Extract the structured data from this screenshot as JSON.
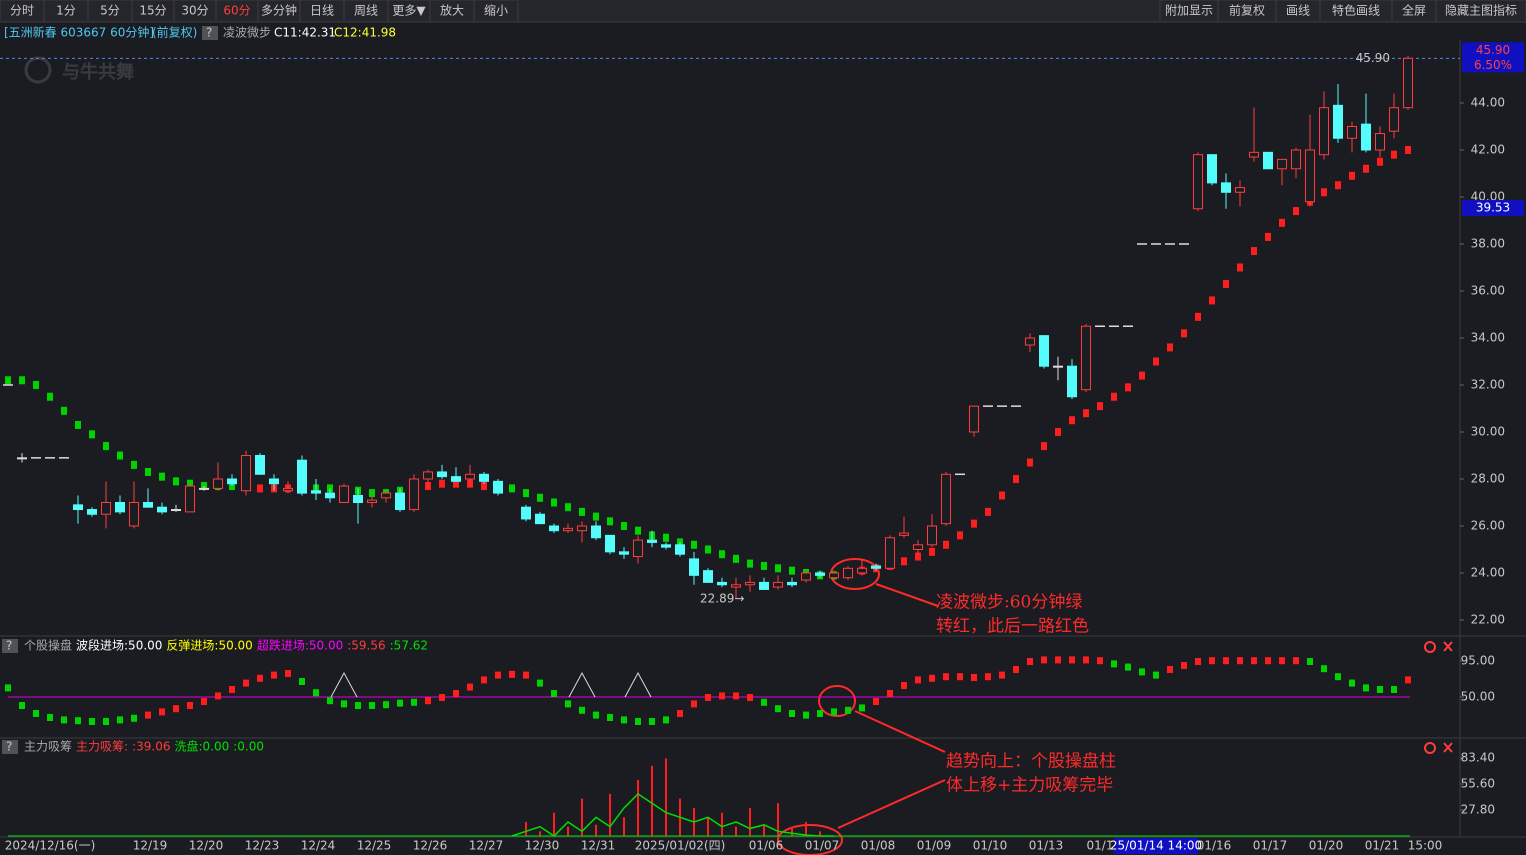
{
  "toolbar": {
    "left": [
      "分时",
      "1分",
      "5分",
      "15分",
      "30分",
      "60分",
      "多分钟",
      "日线",
      "周线",
      "更多▼",
      "放大",
      "缩小"
    ],
    "active": "60分",
    "right": [
      "附加显示",
      "前复权",
      "画线",
      "特色画线",
      "全屏",
      "隐藏主图指标"
    ]
  },
  "header": {
    "stock": "[五洲新春 603667 60分钟]",
    "adjust": "(前复权)",
    "help": "?",
    "indicator": "凌波微步",
    "c1": "C11:42.31",
    "c2": "C12:41.98"
  },
  "watermark": "与牛共舞",
  "chart_data": {
    "type": "candlestick",
    "ylim": [
      21.5,
      46.45
    ],
    "yticks": [
      {
        "value": 22,
        "label": "22.00"
      },
      {
        "value": 24,
        "label": "24.00"
      },
      {
        "value": 26,
        "label": "26.00"
      },
      {
        "value": 28,
        "label": "28.00"
      },
      {
        "value": 30,
        "label": "30.00"
      },
      {
        "value": 32,
        "label": "32.00"
      },
      {
        "value": 34,
        "label": "34.00"
      },
      {
        "value": 36,
        "label": "36.00"
      },
      {
        "value": 38,
        "label": "38.00"
      },
      {
        "value": 40,
        "label": "40.00"
      },
      {
        "value": 42,
        "label": "42.00"
      },
      {
        "value": 44,
        "label": "44.00"
      }
    ],
    "last_price": {
      "value": 45.9,
      "label": "45.90"
    },
    "change_label": "6.50%",
    "cursor_price": {
      "value": 39.53,
      "label": "39.53"
    },
    "high_mark": {
      "value": 45.9,
      "label": "45.90"
    },
    "low_mark": {
      "value": 22.89,
      "label": "22.89→"
    },
    "up_color": "#ff3c3c",
    "down_color": "#54fcfc",
    "flat_color": "#dddddd",
    "slots": [
      0,
      1,
      2,
      3,
      4,
      5,
      6,
      7,
      8,
      9,
      10,
      11,
      12,
      13,
      14,
      15,
      16,
      17,
      18,
      19,
      20,
      21,
      22,
      23,
      24,
      25,
      26,
      27,
      28,
      29,
      30,
      31,
      32,
      33,
      34,
      35,
      37,
      38,
      39,
      40,
      41,
      42,
      43,
      44,
      45,
      46,
      47,
      48,
      49,
      50,
      51,
      52,
      53,
      54,
      55,
      56,
      57,
      58,
      59,
      60,
      61,
      62,
      63,
      64,
      65,
      66,
      67,
      68,
      69,
      70,
      71,
      72,
      73,
      74,
      75,
      76,
      77,
      78,
      79,
      80,
      81,
      82,
      83,
      84,
      85,
      86,
      87,
      88,
      89,
      90,
      91,
      92,
      93,
      94,
      95,
      96,
      97,
      98,
      99,
      100
    ],
    "ohlc": [
      [
        32.0,
        32.0,
        32.0,
        32.0
      ],
      [
        28.9,
        29.1,
        28.7,
        28.9
      ],
      [
        28.9,
        28.9,
        28.9,
        28.9
      ],
      [
        28.9,
        28.9,
        28.9,
        28.9
      ],
      [
        28.9,
        28.9,
        28.9,
        28.9
      ],
      [
        26.9,
        27.3,
        26.1,
        26.7
      ],
      [
        26.7,
        26.8,
        26.4,
        26.5
      ],
      [
        26.5,
        27.9,
        25.9,
        27.0
      ],
      [
        27.0,
        27.3,
        26.5,
        26.6
      ],
      [
        26.0,
        27.9,
        25.9,
        27.0
      ],
      [
        27.0,
        27.6,
        26.8,
        26.8
      ],
      [
        26.8,
        27.0,
        26.5,
        26.6
      ],
      [
        26.7,
        26.9,
        26.6,
        26.7
      ],
      [
        26.6,
        27.8,
        26.6,
        27.7
      ],
      [
        27.6,
        27.7,
        27.5,
        27.6
      ],
      [
        27.6,
        28.7,
        27.5,
        28.0
      ],
      [
        28.0,
        28.2,
        27.7,
        27.8
      ],
      [
        27.5,
        29.2,
        27.3,
        29.0
      ],
      [
        29.0,
        29.1,
        28.2,
        28.2
      ],
      [
        28.0,
        28.2,
        27.5,
        27.8
      ],
      [
        27.5,
        27.9,
        27.4,
        27.6
      ],
      [
        28.8,
        29.0,
        27.3,
        27.4
      ],
      [
        27.5,
        28.0,
        27.1,
        27.4
      ],
      [
        27.4,
        27.6,
        27.0,
        27.2
      ],
      [
        27.0,
        27.8,
        27.0,
        27.7
      ],
      [
        27.3,
        27.6,
        26.1,
        27.0
      ],
      [
        27.0,
        27.3,
        26.8,
        27.1
      ],
      [
        27.2,
        27.5,
        27.0,
        27.4
      ],
      [
        27.4,
        27.6,
        26.6,
        26.7
      ],
      [
        26.7,
        28.2,
        26.6,
        28.0
      ],
      [
        28.0,
        28.4,
        27.6,
        28.3
      ],
      [
        28.3,
        28.6,
        28.0,
        28.1
      ],
      [
        28.1,
        28.5,
        27.9,
        27.9
      ],
      [
        28.0,
        28.6,
        27.7,
        28.2
      ],
      [
        28.2,
        28.3,
        27.8,
        27.9
      ],
      [
        27.9,
        28.0,
        27.3,
        27.4
      ],
      [
        26.8,
        26.9,
        26.2,
        26.3
      ],
      [
        26.5,
        26.6,
        26.1,
        26.1
      ],
      [
        26.0,
        26.1,
        25.7,
        25.8
      ],
      [
        25.8,
        26.1,
        25.7,
        25.9
      ],
      [
        25.8,
        26.2,
        25.3,
        26.0
      ],
      [
        26.0,
        26.2,
        25.4,
        25.5
      ],
      [
        25.6,
        25.6,
        24.8,
        24.9
      ],
      [
        24.9,
        25.1,
        24.6,
        24.8
      ],
      [
        24.7,
        25.6,
        24.4,
        25.4
      ],
      [
        25.4,
        25.8,
        25.1,
        25.3
      ],
      [
        25.2,
        25.3,
        25.0,
        25.1
      ],
      [
        25.2,
        25.3,
        24.7,
        24.8
      ],
      [
        24.6,
        24.9,
        23.5,
        23.9
      ],
      [
        24.1,
        24.2,
        23.6,
        23.6
      ],
      [
        23.6,
        23.8,
        23.4,
        23.5
      ],
      [
        23.4,
        23.8,
        22.9,
        23.5
      ],
      [
        23.5,
        23.9,
        23.2,
        23.6
      ],
      [
        23.6,
        23.8,
        23.3,
        23.3
      ],
      [
        23.4,
        23.9,
        23.3,
        23.6
      ],
      [
        23.6,
        23.8,
        23.4,
        23.5
      ],
      [
        23.7,
        24.1,
        23.6,
        24.0
      ],
      [
        24.0,
        24.1,
        23.8,
        23.9
      ],
      [
        23.8,
        24.1,
        23.7,
        24.0
      ],
      [
        23.8,
        24.3,
        23.7,
        24.2
      ],
      [
        24.0,
        24.6,
        23.9,
        24.2
      ],
      [
        24.3,
        24.4,
        24.1,
        24.2
      ],
      [
        24.2,
        25.6,
        24.2,
        25.5
      ],
      [
        25.6,
        26.4,
        25.5,
        25.7
      ],
      [
        25.0,
        25.4,
        24.8,
        25.2
      ],
      [
        25.2,
        26.5,
        25.1,
        26.0
      ],
      [
        26.1,
        28.3,
        26.0,
        28.2
      ],
      [
        28.2,
        28.2,
        28.2,
        28.2
      ],
      [
        30.0,
        31.1,
        29.8,
        31.1
      ],
      [
        31.1,
        31.1,
        31.1,
        31.1
      ],
      [
        31.1,
        31.1,
        31.1,
        31.1
      ],
      [
        31.1,
        31.1,
        31.1,
        31.1
      ],
      [
        33.7,
        34.2,
        33.4,
        34.0
      ],
      [
        34.1,
        34.1,
        32.7,
        32.8
      ],
      [
        32.8,
        33.2,
        32.2,
        32.8
      ],
      [
        32.8,
        33.1,
        31.4,
        31.5
      ],
      [
        31.8,
        34.6,
        31.7,
        34.5
      ],
      [
        34.5,
        34.5,
        34.5,
        34.5
      ],
      [
        34.5,
        34.5,
        34.5,
        34.5
      ],
      [
        34.5,
        34.5,
        34.5,
        34.5
      ],
      [
        38.0,
        38.0,
        38.0,
        38.0
      ],
      [
        38.0,
        38.0,
        38.0,
        38.0
      ],
      [
        38.0,
        38.0,
        38.0,
        38.0
      ],
      [
        38.0,
        38.0,
        38.0,
        38.0
      ],
      [
        39.5,
        41.9,
        39.4,
        41.8
      ],
      [
        41.8,
        41.8,
        40.5,
        40.6
      ],
      [
        40.6,
        41.0,
        39.5,
        40.2
      ],
      [
        40.2,
        40.7,
        39.6,
        40.4
      ],
      [
        41.7,
        43.8,
        41.5,
        41.9
      ],
      [
        41.9,
        41.9,
        41.2,
        41.2
      ],
      [
        41.2,
        41.5,
        40.5,
        41.6
      ],
      [
        41.2,
        42.1,
        40.8,
        42.0
      ],
      [
        39.8,
        43.5,
        39.6,
        42.0
      ],
      [
        41.8,
        44.5,
        41.6,
        43.8
      ],
      [
        43.9,
        44.8,
        42.3,
        42.5
      ],
      [
        42.5,
        43.2,
        41.9,
        43.0
      ],
      [
        43.1,
        44.4,
        41.9,
        42.0
      ],
      [
        42.0,
        43.0,
        41.7,
        42.7
      ],
      [
        42.8,
        44.4,
        42.5,
        43.8
      ],
      [
        43.8,
        46.0,
        43.7,
        45.9
      ]
    ],
    "step_segments": [
      {
        "x0": 0,
        "color": "#00d400",
        "values": [
          32.2,
          32.2,
          32.0,
          31.5,
          30.9,
          30.3,
          29.9,
          29.4,
          29.0,
          28.6,
          28.3,
          28.1,
          27.9,
          27.8,
          27.7,
          27.7,
          27.7,
          27.7
        ]
      },
      {
        "x0": 18,
        "color": "#ff1e1e",
        "values": [
          27.6,
          27.6,
          27.6,
          27.6
        ]
      },
      {
        "x0": 22,
        "color": "#00d400",
        "values": [
          27.6,
          27.6,
          27.5,
          27.5,
          27.4,
          27.4,
          27.5,
          27.6
        ]
      },
      {
        "x0": 30,
        "color": "#ff1e1e",
        "values": [
          27.7,
          27.8,
          27.8,
          27.8,
          27.7,
          27.7
        ]
      },
      {
        "x0": 36,
        "color": "#00d400",
        "values": [
          27.6,
          27.4,
          27.2,
          27.0,
          26.8,
          26.6,
          26.4,
          26.2,
          26.0,
          25.8,
          25.6,
          25.5,
          25.3,
          25.2,
          25.0,
          24.8,
          24.6,
          24.4,
          24.3,
          24.2,
          24.1,
          24.0,
          23.9,
          23.9
        ]
      },
      {
        "x0": 60,
        "color": "#ff1e1e",
        "values": [
          24.0,
          24.1,
          24.2,
          24.3,
          24.5,
          24.7,
          24.9,
          25.2,
          25.6,
          26.1,
          26.6,
          27.3,
          28.0,
          28.7,
          29.4,
          30.0,
          30.5,
          30.8,
          31.1,
          31.5,
          31.9,
          32.4,
          33.0,
          33.6,
          34.2,
          34.9,
          35.6,
          36.3,
          37.0,
          37.7,
          38.3,
          38.9,
          39.4,
          39.8,
          40.2,
          40.5,
          40.9,
          41.2,
          41.5,
          41.8,
          42.0
        ]
      }
    ],
    "x_labels": [
      "2024/12/16(一)",
      "12/19",
      "12/20",
      "12/23",
      "12/24",
      "12/25",
      "12/26",
      "12/27",
      "12/30",
      "12/31",
      "2025/01/02(四)",
      "01/06",
      "01/07",
      "01/08",
      "01/09",
      "01/10",
      "01/13",
      "01/1",
      "01/16",
      "01/17",
      "01/20",
      "01/21",
      "15:00"
    ],
    "highlight_label": "25/01/14 14:00"
  },
  "panel1": {
    "type": "dots",
    "help": "?",
    "title": "个股操盘",
    "labels": [
      {
        "text": "波段进场:50.00",
        "color": "#ffffff"
      },
      {
        "text": "反弹进场:50.00",
        "color": "#ffff00"
      },
      {
        "text": "超跌进场:50.00",
        "color": "#ff00ff"
      },
      {
        "text": ":59.56",
        "color": "#ff3c3c"
      },
      {
        "text": ":57.62",
        "color": "#00e000"
      }
    ],
    "ylim": [
      0,
      120
    ],
    "yticks": [
      {
        "value": 95,
        "label": "95.00"
      },
      {
        "value": 50,
        "label": "50.00"
      }
    ],
    "baseline": 50,
    "baseline_color": "#e000e0",
    "segments": [
      {
        "x0": 0,
        "color": "#00d400",
        "values": [
          62,
          40,
          30,
          25,
          22,
          21,
          20,
          20,
          22,
          24
        ]
      },
      {
        "x0": 10,
        "color": "#ff1e1e",
        "values": [
          28,
          32,
          36,
          40,
          45,
          52,
          60,
          68,
          74,
          78,
          80
        ]
      },
      {
        "x0": 21,
        "color": "#00d400",
        "values": [
          70,
          56,
          46,
          42,
          40,
          40,
          41,
          43,
          44
        ]
      },
      {
        "x0": 30,
        "color": "#ff1e1e",
        "values": [
          46,
          50,
          55,
          63,
          72,
          78,
          79,
          78
        ]
      },
      {
        "x0": 38,
        "color": "#00d400",
        "values": [
          68,
          55,
          42,
          34,
          28,
          25,
          22,
          20,
          20,
          22
        ]
      },
      {
        "x0": 48,
        "color": "#ff1e1e",
        "values": [
          30,
          42,
          50,
          52,
          52,
          50
        ]
      },
      {
        "x0": 54,
        "color": "#00d400",
        "values": [
          44,
          36,
          30,
          28,
          30,
          32,
          34,
          37
        ]
      },
      {
        "x0": 62,
        "color": "#ff1e1e",
        "values": [
          45,
          55,
          65,
          72,
          74,
          76,
          76,
          75,
          76,
          78,
          85,
          95,
          97,
          97,
          97,
          97,
          96
        ]
      },
      {
        "x0": 79,
        "color": "#00d400",
        "values": [
          92,
          88,
          82,
          78
        ]
      },
      {
        "x0": 83,
        "color": "#ff1e1e",
        "values": [
          85,
          90,
          95,
          96,
          96,
          96,
          96,
          96,
          96,
          96
        ]
      },
      {
        "x0": 93,
        "color": "#00d400",
        "values": [
          95,
          86,
          76,
          68,
          62,
          60,
          60
        ]
      },
      {
        "x0": 100,
        "color": "#ff1e1e",
        "values": [
          72
        ]
      }
    ],
    "signals": [
      24,
      41,
      45
    ]
  },
  "panel2": {
    "type": "bars",
    "help": "?",
    "title": "主力吸筹",
    "labels": [
      {
        "text": "主力吸筹:",
        "color": "#ff3c3c"
      },
      {
        "text": ":39.06",
        "color": "#ff3c3c"
      },
      {
        "text": "洗盘:0.00",
        "color": "#00e000"
      },
      {
        "text": ":0.00",
        "color": "#00e000"
      }
    ],
    "ylim": [
      0,
      100
    ],
    "yticks": [
      {
        "value": 83.4,
        "label": "83.40"
      },
      {
        "value": 55.6,
        "label": "55.60"
      },
      {
        "value": 27.8,
        "label": "27.80"
      }
    ],
    "bars": {
      "x0": 36,
      "color": "#ff1e1e",
      "values": [
        0,
        15,
        5,
        25,
        10,
        40,
        12,
        45,
        20,
        60,
        75,
        83,
        40,
        30,
        20,
        25,
        10,
        30,
        12,
        35,
        10,
        15,
        5,
        0
      ]
    },
    "line": {
      "x0": 36,
      "color": "#00e000",
      "values": [
        0,
        5,
        10,
        0,
        15,
        5,
        20,
        10,
        30,
        45,
        35,
        25,
        20,
        15,
        20,
        10,
        15,
        8,
        12,
        5,
        3,
        1,
        0,
        0
      ]
    }
  },
  "annotations": [
    "凌波微步:60分钟绿",
    "转红，此后一路红色",
    "趋势向上：个股操盘柱",
    "体上移+主力吸筹完毕"
  ]
}
